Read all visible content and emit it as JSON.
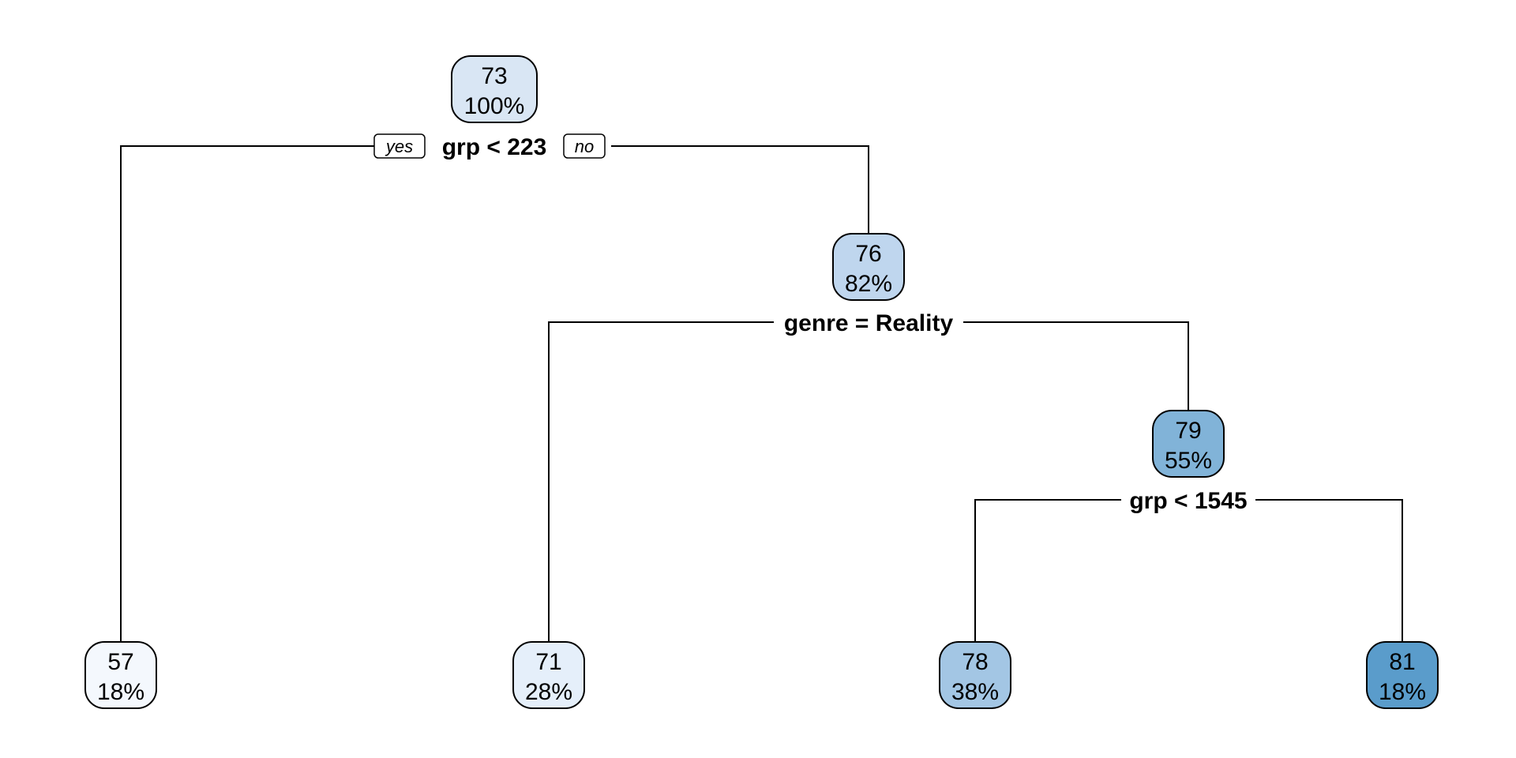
{
  "nodes": [
    {
      "id": "root",
      "value": "73",
      "percent": "100%",
      "fill": "#d9e6f4"
    },
    {
      "id": "right",
      "value": "76",
      "percent": "82%",
      "fill": "#bfd6ee"
    },
    {
      "id": "rr",
      "value": "79",
      "percent": "55%",
      "fill": "#81b3d8"
    },
    {
      "id": "leaf1",
      "value": "57",
      "percent": "18%",
      "fill": "#f4f8fd"
    },
    {
      "id": "leaf2",
      "value": "71",
      "percent": "28%",
      "fill": "#e5effa"
    },
    {
      "id": "leaf3",
      "value": "78",
      "percent": "38%",
      "fill": "#a3c6e4"
    },
    {
      "id": "leaf4",
      "value": "81",
      "percent": "18%",
      "fill": "#5a9ccb"
    }
  ],
  "splits": {
    "root": "grp < 223",
    "right": "genre = Reality",
    "rr": "grp < 1545"
  },
  "branch_labels": {
    "yes": "yes",
    "no": "no"
  }
}
